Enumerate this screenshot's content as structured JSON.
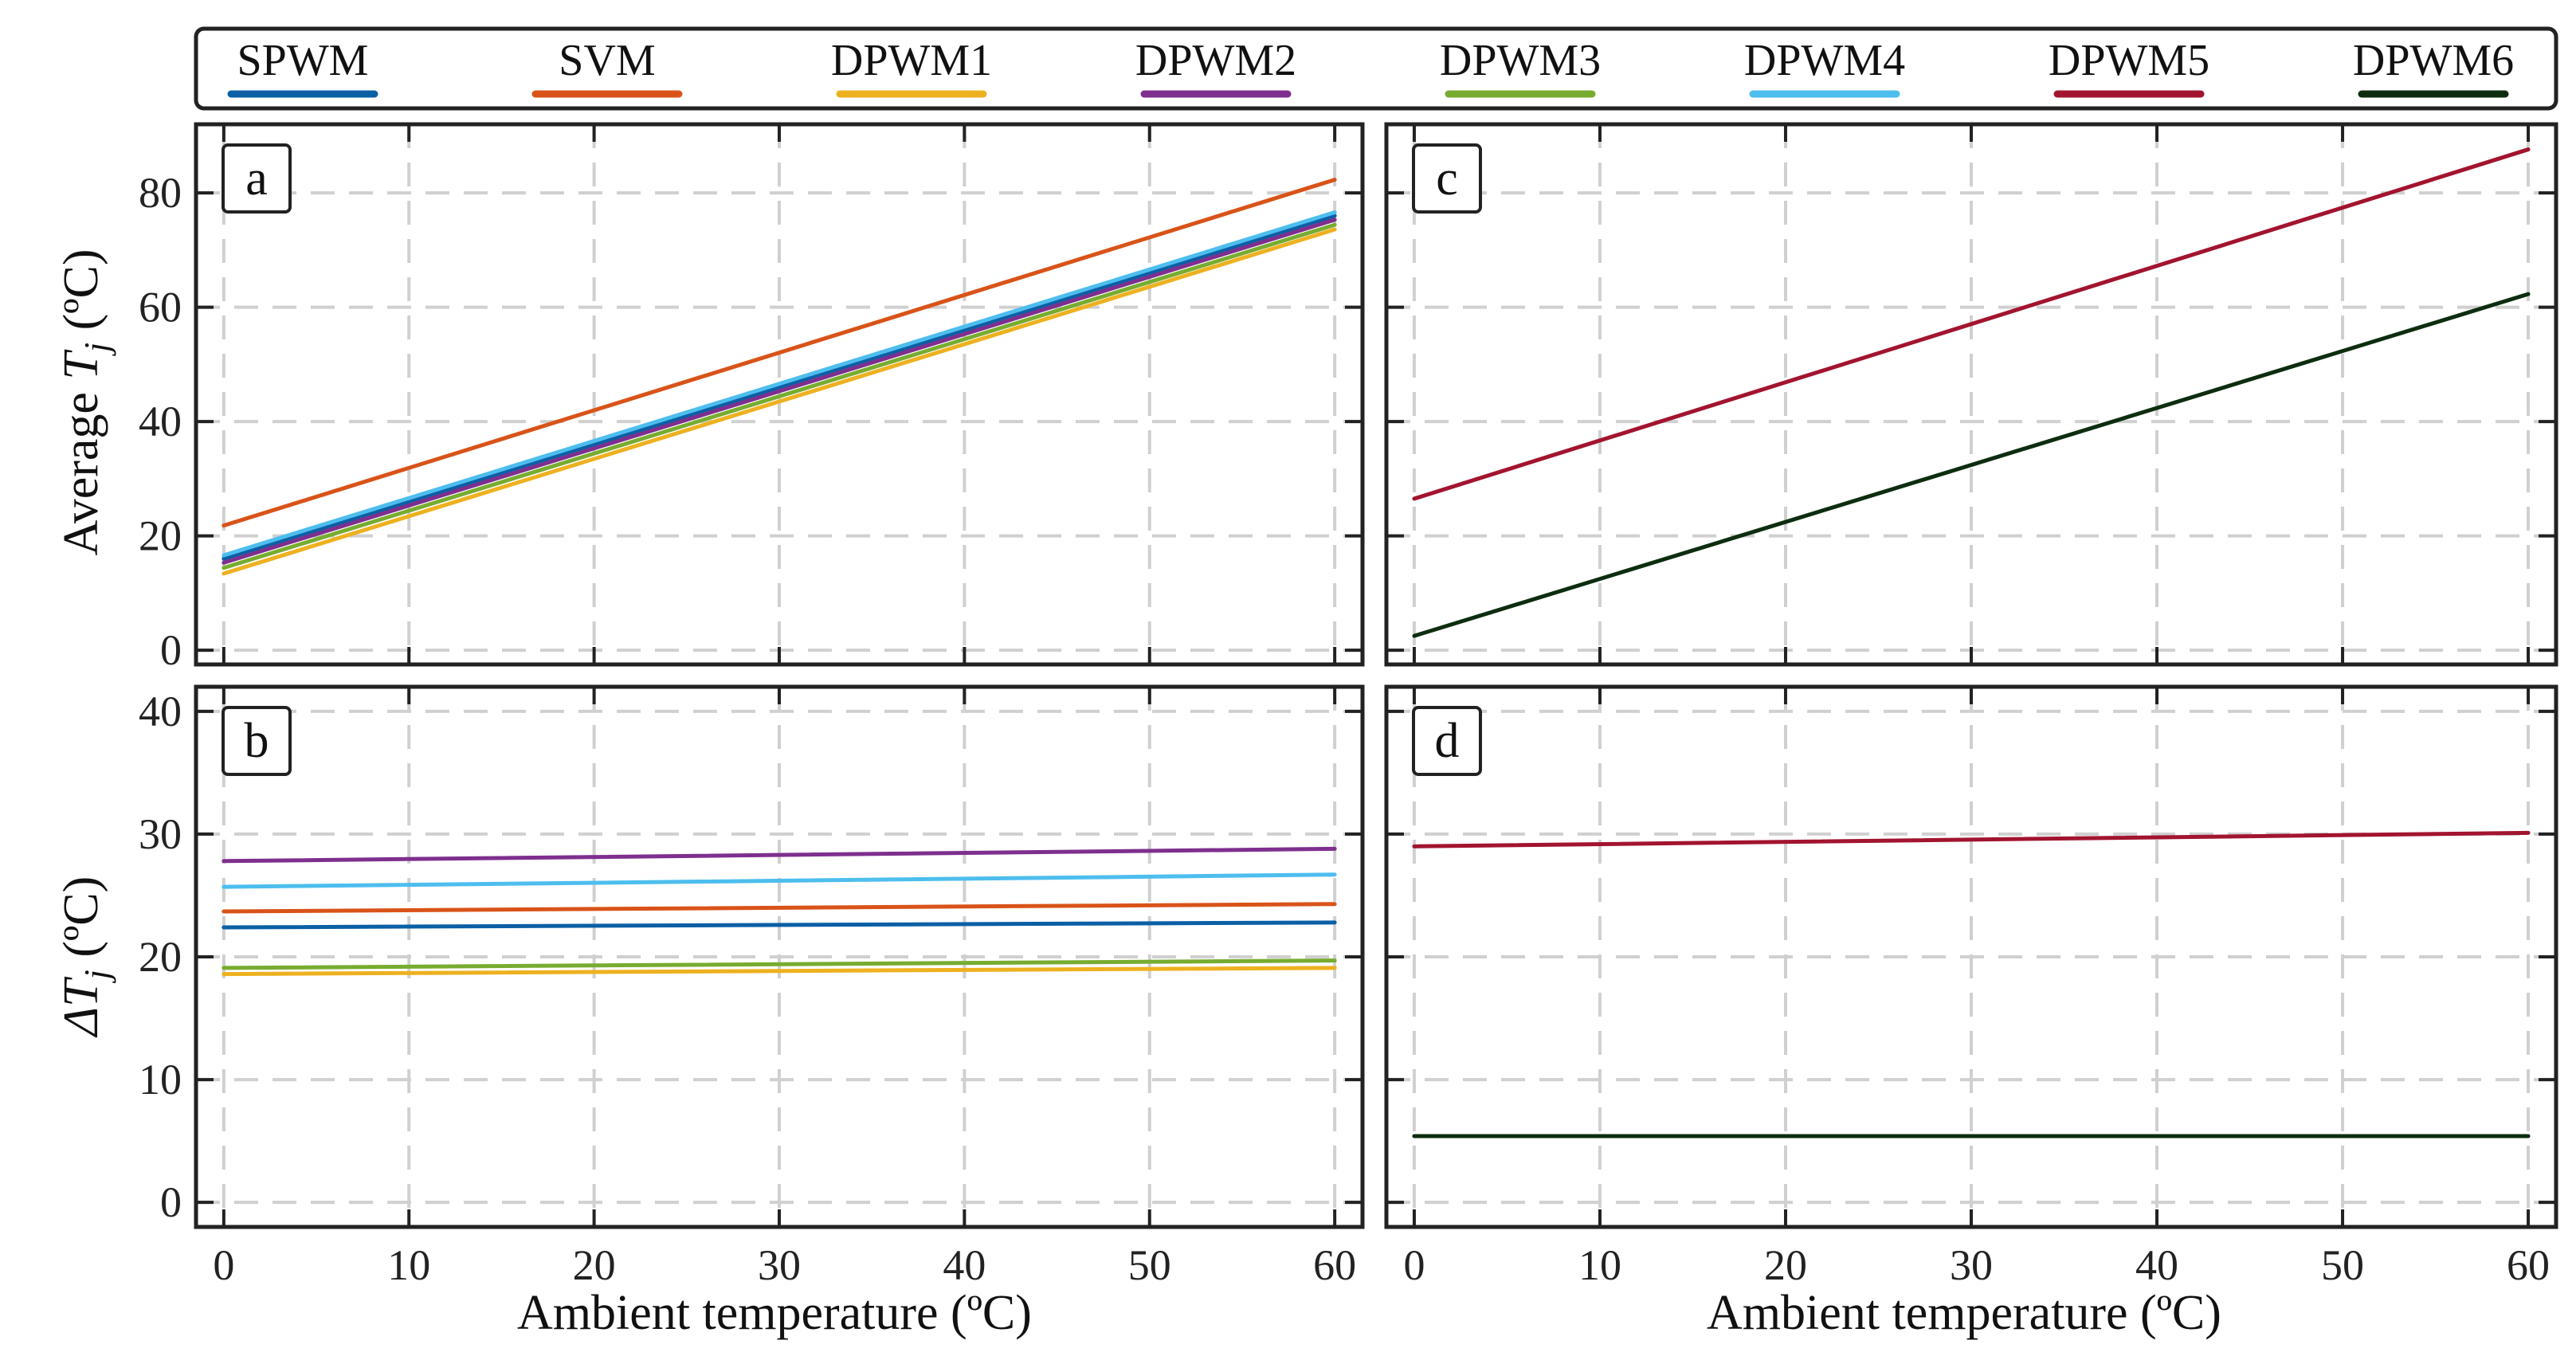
{
  "legend": [
    {
      "name": "SPWM",
      "color": "#0b5fa5"
    },
    {
      "name": "SVM",
      "color": "#d95319"
    },
    {
      "name": "DPWM1",
      "color": "#edb120"
    },
    {
      "name": "DPWM2",
      "color": "#7e2f8e"
    },
    {
      "name": "DPWM3",
      "color": "#77ac30"
    },
    {
      "name": "DPWM4",
      "color": "#4dbeee"
    },
    {
      "name": "DPWM5",
      "color": "#a2142f"
    },
    {
      "name": "DPWM6",
      "color": "#0e2d10"
    }
  ],
  "axes": {
    "xlabel": "Ambient temperature (ºC)",
    "ylabel_top_prefix": "Average ",
    "ylabel_top_symbol": "T",
    "ylabel_sub": "j",
    "ylabel_unit": " (ºC)",
    "ylabel_bottom_symbol": "ΔT",
    "xticks": [
      "0",
      "10",
      "20",
      "30",
      "40",
      "50",
      "60"
    ],
    "yticks_top": [
      "0",
      "20",
      "40",
      "60",
      "80"
    ],
    "yticks_bottom": [
      "0",
      "10",
      "20",
      "30",
      "40"
    ]
  },
  "chart_data": [
    {
      "panel": "a",
      "type": "line",
      "x": [
        0,
        60
      ],
      "xlim": [
        -1.5,
        61.5
      ],
      "ylim": [
        -2.5,
        92
      ],
      "series": [
        {
          "name": "SPWM",
          "values": [
            16.0,
            76.0
          ]
        },
        {
          "name": "DPWM2",
          "values": [
            15.3,
            75.3
          ]
        },
        {
          "name": "DPWM4",
          "values": [
            16.6,
            76.6
          ]
        },
        {
          "name": "DPWM3",
          "values": [
            14.4,
            74.4
          ]
        },
        {
          "name": "DPWM1",
          "values": [
            13.4,
            73.6
          ]
        },
        {
          "name": "SVM",
          "values": [
            21.8,
            82.3
          ]
        }
      ]
    },
    {
      "panel": "b",
      "type": "line",
      "x": [
        0,
        60
      ],
      "xlim": [
        -1.5,
        61.5
      ],
      "ylim": [
        -2,
        42
      ],
      "series": [
        {
          "name": "DPWM2",
          "values": [
            27.8,
            28.8
          ]
        },
        {
          "name": "DPWM4",
          "values": [
            25.7,
            26.7
          ]
        },
        {
          "name": "SVM",
          "values": [
            23.7,
            24.3
          ]
        },
        {
          "name": "SPWM",
          "values": [
            22.4,
            22.8
          ]
        },
        {
          "name": "DPWM3",
          "values": [
            19.1,
            19.7
          ]
        },
        {
          "name": "DPWM1",
          "values": [
            18.6,
            19.1
          ]
        }
      ]
    },
    {
      "panel": "c",
      "type": "line",
      "x": [
        0,
        60
      ],
      "xlim": [
        -1.5,
        61.5
      ],
      "ylim": [
        -2.5,
        92
      ],
      "series": [
        {
          "name": "DPWM5",
          "values": [
            26.5,
            87.6
          ]
        },
        {
          "name": "DPWM6",
          "values": [
            2.5,
            62.3
          ]
        }
      ]
    },
    {
      "panel": "d",
      "type": "line",
      "x": [
        0,
        60
      ],
      "xlim": [
        -1.5,
        61.5
      ],
      "ylim": [
        -2,
        42
      ],
      "series": [
        {
          "name": "DPWM5",
          "values": [
            29.0,
            30.1
          ]
        },
        {
          "name": "DPWM6",
          "values": [
            5.4,
            5.4
          ]
        }
      ]
    }
  ]
}
